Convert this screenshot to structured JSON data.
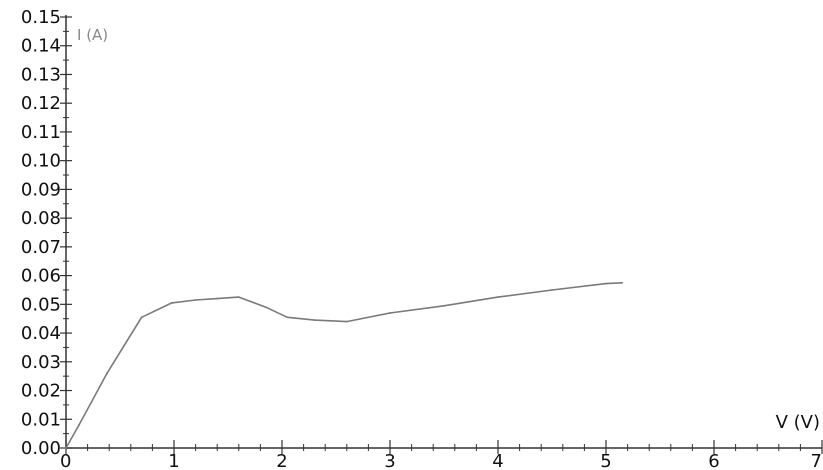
{
  "chart_data": {
    "type": "line",
    "title": "",
    "xlabel": "V (V)",
    "ylabel": "I (A)",
    "xlim": [
      0,
      7
    ],
    "ylim": [
      0,
      0.15
    ],
    "grid": false,
    "x_ticks": [
      "0",
      "1",
      "2",
      "3",
      "4",
      "5",
      "6",
      "7"
    ],
    "y_ticks": [
      "0.00",
      "0.01",
      "0.02",
      "0.03",
      "0.04",
      "0.05",
      "0.06",
      "0.07",
      "0.08",
      "0.09",
      "0.10",
      "0.11",
      "0.12",
      "0.13",
      "0.14",
      "0.15"
    ],
    "series": [
      {
        "color": "#7a7a7a",
        "x": [
          0.0,
          0.12,
          0.38,
          0.7,
          0.98,
          1.2,
          1.4,
          1.6,
          1.85,
          2.05,
          2.3,
          2.6,
          3.0,
          3.5,
          4.0,
          4.5,
          5.0,
          5.15
        ],
        "y": [
          0.0,
          0.008,
          0.026,
          0.0455,
          0.0505,
          0.0515,
          0.052,
          0.0525,
          0.049,
          0.0455,
          0.0445,
          0.044,
          0.047,
          0.0495,
          0.0525,
          0.055,
          0.0572,
          0.0575
        ]
      }
    ]
  }
}
